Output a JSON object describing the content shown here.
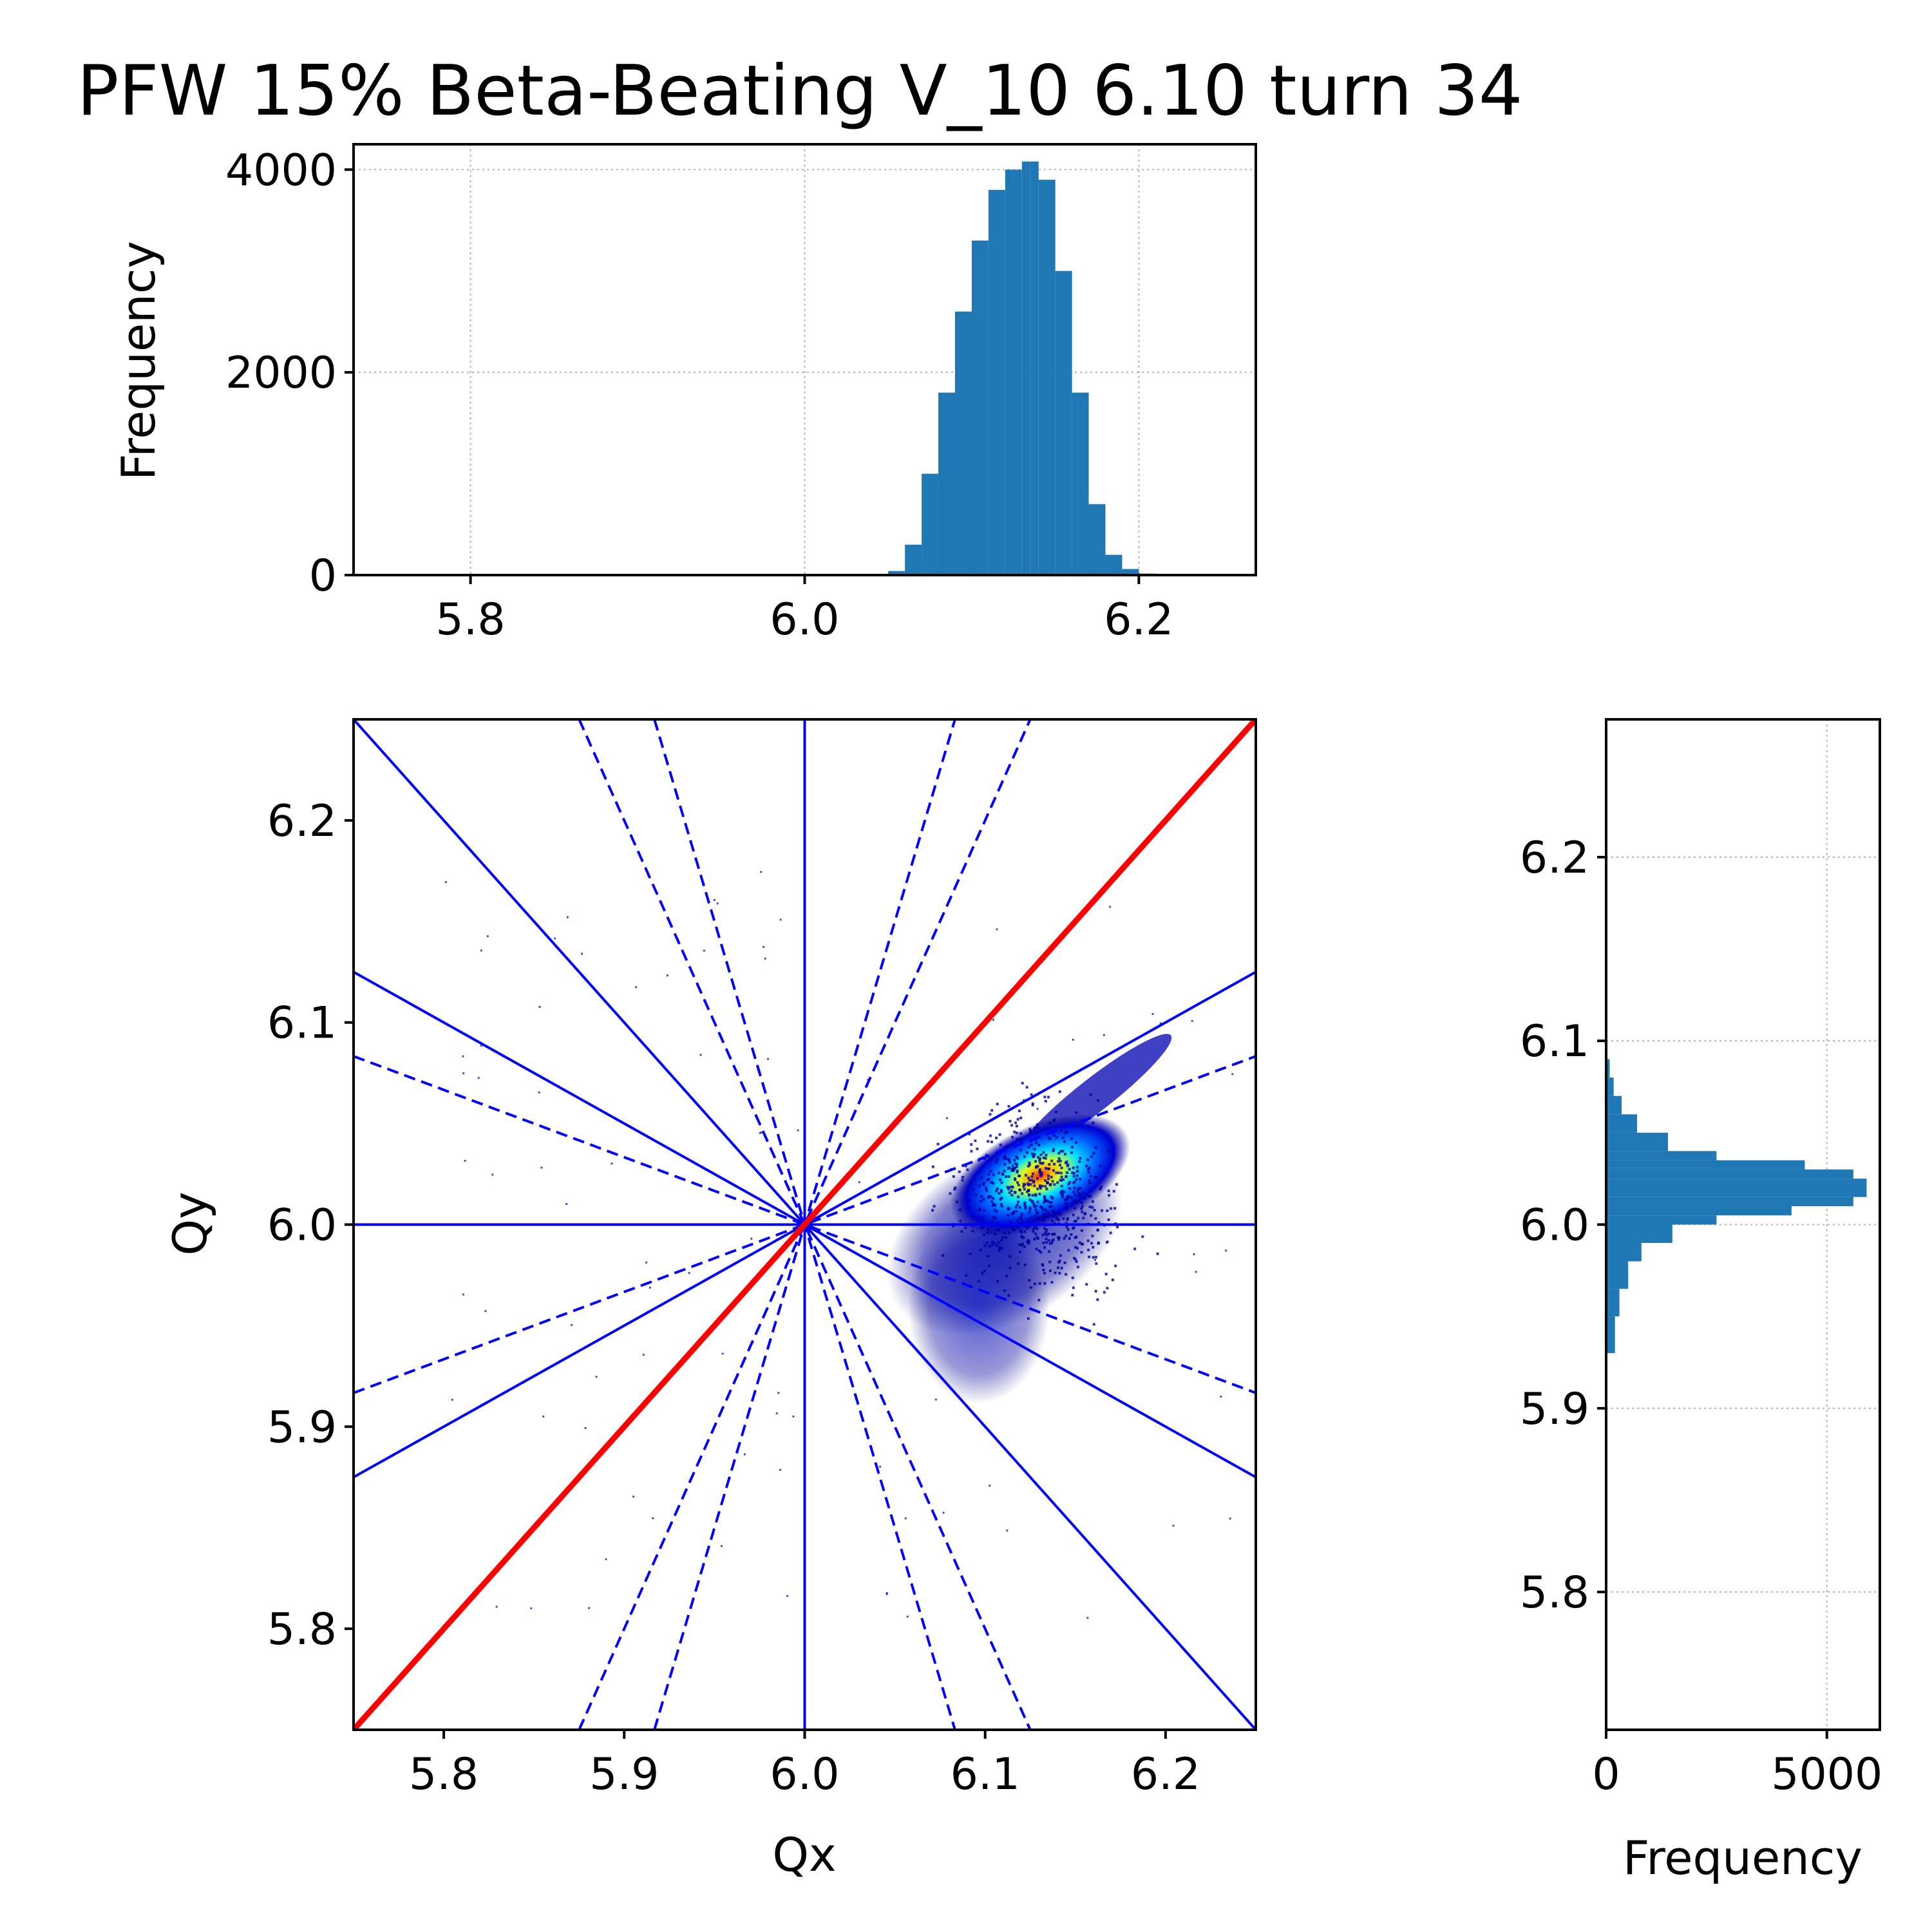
{
  "title": "PFW 15% Beta-Beating V_10 6.10 turn 34",
  "colors": {
    "histogram": "#1f77b4",
    "resonance_line": "#0000ff",
    "diagonal": "#ff0000",
    "grid": "#b0b0b0",
    "axes": "#000000"
  },
  "chart_data": [
    {
      "id": "top-histogram",
      "type": "bar",
      "orientation": "vertical",
      "xlabel": "",
      "ylabel": "Frequency",
      "xlim": [
        5.73,
        6.27
      ],
      "ylim": [
        0,
        4250
      ],
      "xticks": [
        "5.8",
        "6.0",
        "6.2"
      ],
      "xtick_values": [
        5.8,
        6.0,
        6.2
      ],
      "yticks": [
        "0",
        "2000",
        "4000"
      ],
      "ytick_values": [
        0,
        2000,
        4000
      ],
      "grid": true,
      "bins": {
        "x": [
          6.05,
          6.06,
          6.07,
          6.08,
          6.09,
          6.1,
          6.11,
          6.12,
          6.13,
          6.135,
          6.14,
          6.15,
          6.16,
          6.17,
          6.18,
          6.19,
          6.2,
          6.21
        ],
        "values": [
          0,
          40,
          300,
          1000,
          1800,
          2600,
          3300,
          3800,
          4000,
          4080,
          3900,
          3000,
          1800,
          700,
          200,
          60,
          15,
          0
        ]
      }
    },
    {
      "id": "tune-diagram",
      "type": "scatter",
      "xlabel": "Qx",
      "ylabel": "Qy",
      "xlim": [
        5.75,
        6.25
      ],
      "ylim": [
        5.75,
        6.25
      ],
      "xticks": [
        "5.8",
        "5.9",
        "6.0",
        "6.1",
        "6.2"
      ],
      "xtick_values": [
        5.8,
        5.9,
        6.0,
        6.1,
        6.2
      ],
      "yticks": [
        "5.8",
        "5.9",
        "6.0",
        "6.1",
        "6.2"
      ],
      "ytick_values": [
        5.8,
        5.9,
        6.0,
        6.1,
        6.2
      ],
      "grid": false,
      "resonance_lines": [
        {
          "x": [
            5.75,
            6.25
          ],
          "y": [
            6.0,
            6.0
          ],
          "style": "solid",
          "color": "#0000ff"
        },
        {
          "x": [
            6.0,
            6.0
          ],
          "y": [
            5.75,
            6.25
          ],
          "style": "solid",
          "color": "#0000ff"
        },
        {
          "x": [
            5.75,
            6.25
          ],
          "y": [
            6.25,
            5.75
          ],
          "style": "solid",
          "color": "#0000ff"
        },
        {
          "x": [
            5.75,
            6.25
          ],
          "y": [
            5.875,
            6.125
          ],
          "style": "solid",
          "color": "#0000ff"
        },
        {
          "x": [
            5.75,
            6.25
          ],
          "y": [
            6.125,
            5.875
          ],
          "style": "solid",
          "color": "#0000ff"
        },
        {
          "x": [
            5.75,
            6.25
          ],
          "y": [
            5.9167,
            6.0833
          ],
          "style": "dashed",
          "color": "#0000ff"
        },
        {
          "x": [
            5.75,
            6.25
          ],
          "y": [
            6.0833,
            5.9167
          ],
          "style": "dashed",
          "color": "#0000ff"
        },
        {
          "x": [
            5.875,
            6.125
          ],
          "y": [
            5.75,
            6.25
          ],
          "style": "dashed",
          "color": "#0000ff"
        },
        {
          "x": [
            5.875,
            6.125
          ],
          "y": [
            6.25,
            5.75
          ],
          "style": "dashed",
          "color": "#0000ff"
        },
        {
          "x": [
            5.9167,
            6.0833
          ],
          "y": [
            5.75,
            6.25
          ],
          "style": "dashed",
          "color": "#0000ff"
        },
        {
          "x": [
            5.9167,
            6.0833
          ],
          "y": [
            6.25,
            5.75
          ],
          "style": "dashed",
          "color": "#0000ff"
        },
        {
          "x": [
            5.75,
            6.25
          ],
          "y": [
            5.75,
            6.25
          ],
          "style": "solid",
          "color": "#ff0000",
          "width": "thick"
        }
      ],
      "density_cloud": {
        "center": [
          6.128,
          6.022
        ],
        "core_color": "#ff3000",
        "colormap": [
          "#00007f",
          "#0000ff",
          "#0080ff",
          "#00e0ff",
          "#80ff80",
          "#ffff00",
          "#ff8000",
          "#ff0000"
        ]
      }
    },
    {
      "id": "right-histogram",
      "type": "bar",
      "orientation": "horizontal",
      "xlabel": "Frequency",
      "ylabel": "",
      "xlim": [
        0,
        6200
      ],
      "ylim": [
        5.725,
        6.275
      ],
      "xticks": [
        "0",
        "5000"
      ],
      "xtick_values": [
        0,
        5000
      ],
      "yticks": [
        "5.8",
        "5.9",
        "6.0",
        "6.1",
        "6.2"
      ],
      "ytick_values": [
        5.8,
        5.9,
        6.0,
        6.1,
        6.2
      ],
      "grid": true,
      "bins": {
        "y": [
          5.93,
          5.95,
          5.965,
          5.98,
          5.99,
          6.0,
          6.005,
          6.01,
          6.015,
          6.02,
          6.025,
          6.03,
          6.035,
          6.04,
          6.05,
          6.06,
          6.07,
          6.08,
          6.09,
          6.1
        ],
        "values": [
          0,
          200,
          300,
          500,
          800,
          1500,
          2500,
          4200,
          5600,
          5900,
          5600,
          4500,
          2500,
          1400,
          700,
          350,
          170,
          80,
          30,
          0
        ]
      }
    }
  ]
}
